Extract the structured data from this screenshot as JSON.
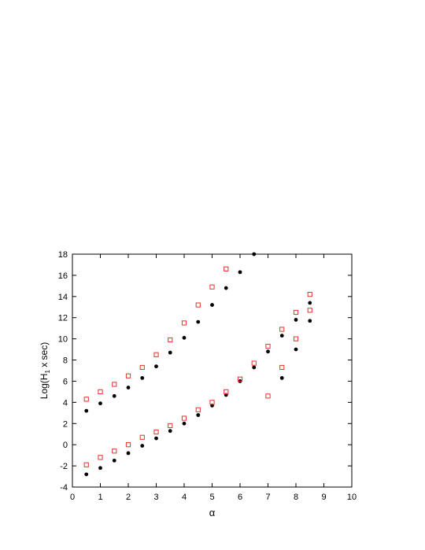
{
  "chart_data": {
    "type": "scatter",
    "title": "",
    "xlabel": "α",
    "ylabel_main": "Log(H",
    "ylabel_sub": "1",
    "ylabel_rest": " x sec)",
    "xlim": [
      0,
      10
    ],
    "ylim": [
      -4,
      18
    ],
    "xticks": [
      0,
      1,
      2,
      3,
      4,
      5,
      6,
      7,
      8,
      9,
      10
    ],
    "yticks": [
      -4,
      -2,
      0,
      2,
      4,
      6,
      8,
      10,
      12,
      14,
      16,
      18
    ],
    "grid": false,
    "legend": "none",
    "series": [
      {
        "marker": "filled-circle",
        "color": "#000000",
        "points": [
          [
            0.5,
            3.2
          ],
          [
            1.0,
            3.9
          ],
          [
            1.5,
            4.6
          ],
          [
            2.0,
            5.4
          ],
          [
            2.5,
            6.3
          ],
          [
            3.0,
            7.4
          ],
          [
            3.5,
            8.7
          ],
          [
            4.0,
            10.1
          ],
          [
            4.5,
            11.6
          ],
          [
            5.0,
            13.2
          ],
          [
            5.5,
            14.8
          ],
          [
            6.0,
            16.3
          ],
          [
            6.5,
            18.0
          ],
          [
            0.5,
            -2.8
          ],
          [
            1.0,
            -2.2
          ],
          [
            1.5,
            -1.5
          ],
          [
            2.0,
            -0.8
          ],
          [
            2.5,
            -0.1
          ],
          [
            3.0,
            0.6
          ],
          [
            3.5,
            1.3
          ],
          [
            4.0,
            2.0
          ],
          [
            4.5,
            2.8
          ],
          [
            5.0,
            3.7
          ],
          [
            5.5,
            4.7
          ],
          [
            6.0,
            6.0
          ],
          [
            6.5,
            7.3
          ],
          [
            7.0,
            8.8
          ],
          [
            7.5,
            10.3
          ],
          [
            8.0,
            11.8
          ],
          [
            8.5,
            13.4
          ],
          [
            7.5,
            6.3
          ],
          [
            8.0,
            9.0
          ],
          [
            8.5,
            11.7
          ]
        ]
      },
      {
        "marker": "open-square",
        "color": "#e8302a",
        "points": [
          [
            0.5,
            4.3
          ],
          [
            1.0,
            5.0
          ],
          [
            1.5,
            5.7
          ],
          [
            2.0,
            6.5
          ],
          [
            2.5,
            7.3
          ],
          [
            3.0,
            8.5
          ],
          [
            3.5,
            9.9
          ],
          [
            4.0,
            11.5
          ],
          [
            4.5,
            13.2
          ],
          [
            5.0,
            14.9
          ],
          [
            5.5,
            16.6
          ],
          [
            0.5,
            -1.9
          ],
          [
            1.0,
            -1.2
          ],
          [
            1.5,
            -0.6
          ],
          [
            2.0,
            0.0
          ],
          [
            2.5,
            0.7
          ],
          [
            3.0,
            1.2
          ],
          [
            3.5,
            1.8
          ],
          [
            4.0,
            2.5
          ],
          [
            4.5,
            3.3
          ],
          [
            5.0,
            4.0
          ],
          [
            5.5,
            5.0
          ],
          [
            6.0,
            6.2
          ],
          [
            6.5,
            7.7
          ],
          [
            7.0,
            9.3
          ],
          [
            7.5,
            10.9
          ],
          [
            8.0,
            12.5
          ],
          [
            8.5,
            14.2
          ],
          [
            7.0,
            4.6
          ],
          [
            7.5,
            7.3
          ],
          [
            8.0,
            10.0
          ],
          [
            8.5,
            12.7
          ]
        ]
      }
    ]
  }
}
